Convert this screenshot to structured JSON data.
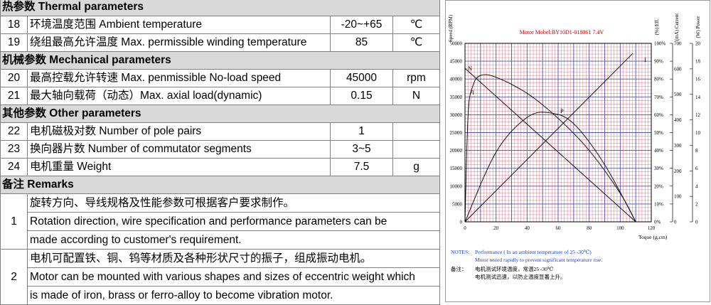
{
  "table": {
    "sections": [
      {
        "title": "热参数  Thermal parameters",
        "rows": [
          {
            "num": "18",
            "label": "环境温度范围  Ambient temperature",
            "value": "-20~+65",
            "unit": "℃"
          },
          {
            "num": "19",
            "label": "绕组最高允许温度  Max. permissible winding temperature",
            "value": "85",
            "unit": "℃"
          }
        ]
      },
      {
        "title": "机械参数 Mechanical parameters",
        "rows": [
          {
            "num": "20",
            "label": "最高控载允许转速 Max. penmissible No-load speed",
            "value": "45000",
            "unit": "rpm"
          },
          {
            "num": "21",
            "label": "最大轴向载荷（动态）Max. axial load(dynamic)",
            "value": "0.15",
            "unit": "N"
          }
        ]
      },
      {
        "title": "其他参数  Other parameters",
        "rows": [
          {
            "num": "22",
            "label": "电机磁极对数  Number of pole pairs",
            "value": "1",
            "unit": ""
          },
          {
            "num": "23",
            "label": "换向器片数  Number of commutator segments",
            "value": "3~5",
            "unit": ""
          },
          {
            "num": "24",
            "label": "电机重量 Weight",
            "value": "7.5",
            "unit": "g"
          }
        ]
      }
    ],
    "remarks_title": "备注 Remarks",
    "remarks": [
      {
        "num": "1",
        "lines": [
          "旋转方向、导线规格及性能参数可根据客户要求制作。",
          "Rotation direction, wire specification and performance parameters can be",
          "made according to customer's requirement."
        ]
      },
      {
        "num": "2",
        "lines": [
          "电机可配置铁、铜、钨等材质及各种形状尺寸的振子，组成振动电机。",
          "Motor can be mounted with various shapes and sizes of eccentric weight which",
          "is made of iron, brass or ferro-alloy to become vibration motor."
        ]
      }
    ]
  },
  "chart_data": {
    "type": "line",
    "title": "Motor Mobel:BY10D1-018061   7.4V",
    "xlabel": "Toque  (g.cm)",
    "xlim": [
      0,
      120
    ],
    "x_ticks": [
      "0",
      "20",
      "40",
      "60",
      "80",
      "100",
      "120"
    ],
    "y_axes": [
      {
        "label": "Speed (RPM)",
        "range": [
          0,
          50000
        ],
        "ticks": [
          "0",
          "5000",
          "10000",
          "15000",
          "20000",
          "25000",
          "30000",
          "35000",
          "40000",
          "45000",
          "50000"
        ]
      },
      {
        "label": "(%) Eff.",
        "range": [
          0,
          100
        ],
        "ticks": [
          "0%",
          "10%",
          "20%",
          "30%",
          "40%",
          "50%",
          "60%",
          "70%",
          "80%",
          "90%",
          "100%"
        ]
      },
      {
        "label": "(mA) Current",
        "range": [
          0,
          700
        ],
        "ticks": [
          "0",
          "100",
          "200",
          "300",
          "400",
          "500",
          "600",
          "700"
        ]
      },
      {
        "label": "(W) Power",
        "range": [
          0,
          20
        ],
        "ticks": [
          "0",
          "2",
          "4",
          "6",
          "8",
          "10",
          "12",
          "14",
          "16",
          "18",
          "20"
        ]
      }
    ],
    "series": [
      {
        "name": "N",
        "axis": "speed",
        "x": [
          0,
          110
        ],
        "y": [
          43000,
          0
        ]
      },
      {
        "name": "I",
        "axis": "current",
        "x": [
          0,
          108
        ],
        "y": [
          0,
          660
        ]
      },
      {
        "name": "P",
        "axis": "power",
        "x": [
          0,
          20,
          40,
          55,
          70,
          90,
          110
        ],
        "y": [
          0,
          7.8,
          11.7,
          12.2,
          11.0,
          6.4,
          0
        ]
      },
      {
        "name": "η",
        "axis": "eff",
        "x": [
          0,
          2,
          5,
          10,
          20,
          40,
          60,
          80,
          100,
          110
        ],
        "y": [
          0,
          60,
          76,
          82,
          81,
          72,
          58,
          40,
          16,
          0
        ]
      }
    ],
    "notes": {
      "label": "NOTES:",
      "line1": "Performance ( In an ambient temperature of 25 -30℃)",
      "line2": "Motor tested rapidly to prevent significant temperature rise.",
      "cn_label": "备注：",
      "cn1": "电机测试环境温度，常温25 -30℃",
      "cn2": "电机测试迅速，以防止温度显著上升。"
    },
    "colors": {
      "grid_major": "#5555aa",
      "grid_minor": "#c06070",
      "title": "#c00000",
      "notes": "#2040c0"
    }
  }
}
